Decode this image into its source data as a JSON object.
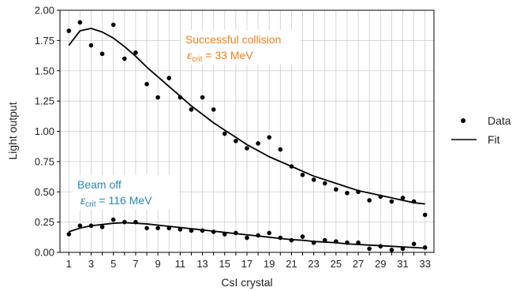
{
  "chart_data": {
    "type": "scatter",
    "title": "",
    "xlabel": "CsI crystal",
    "ylabel": "Light output",
    "xlim": [
      0.2,
      33.8
    ],
    "ylim": [
      0,
      2.0
    ],
    "x_ticks": [
      1,
      3,
      5,
      7,
      9,
      11,
      13,
      15,
      17,
      19,
      21,
      23,
      25,
      27,
      29,
      31,
      33
    ],
    "x_tick_labels": [
      "1",
      "3",
      "5",
      "7",
      "9",
      "11",
      "13",
      "15",
      "17",
      "19",
      "21",
      "23",
      "25",
      "27",
      "29",
      "31",
      "33"
    ],
    "y_ticks": [
      0,
      0.25,
      0.5,
      0.75,
      1.0,
      1.25,
      1.5,
      1.75,
      2.0
    ],
    "y_tick_labels": [
      "0.00",
      "0.25",
      "0.50",
      "0.75",
      "1.00",
      "1.25",
      "1.50",
      "1.75",
      "2.00"
    ],
    "grid": true,
    "legend": {
      "position": "outside-right",
      "data_label": "Data",
      "fit_label": "Fit"
    },
    "colors": {
      "data": "#000000",
      "fit": "#000000",
      "collision_text": "#f07f1b",
      "beam_off_text": "#2a86b5",
      "grid": "#cccccc"
    },
    "series": [
      {
        "name": "Successful collision",
        "x": [
          1,
          2,
          3,
          4,
          5,
          6,
          7,
          8,
          9,
          10,
          11,
          12,
          13,
          14,
          15,
          16,
          17,
          18,
          19,
          20,
          21,
          22,
          23,
          24,
          25,
          26,
          27,
          28,
          29,
          30,
          31,
          32,
          33
        ],
        "values": [
          1.83,
          1.9,
          1.71,
          1.64,
          1.88,
          1.6,
          1.65,
          1.39,
          1.28,
          1.44,
          1.28,
          1.18,
          1.28,
          1.18,
          0.98,
          0.92,
          0.86,
          0.9,
          0.95,
          0.85,
          0.71,
          0.64,
          0.6,
          0.57,
          0.52,
          0.49,
          0.5,
          0.43,
          0.46,
          0.42,
          0.45,
          0.42,
          0.31
        ],
        "fit": [
          1.71,
          1.83,
          1.85,
          1.82,
          1.77,
          1.7,
          1.62,
          1.53,
          1.45,
          1.37,
          1.29,
          1.21,
          1.14,
          1.07,
          1.01,
          0.95,
          0.89,
          0.84,
          0.79,
          0.75,
          0.71,
          0.67,
          0.63,
          0.6,
          0.57,
          0.54,
          0.51,
          0.49,
          0.47,
          0.45,
          0.43,
          0.41,
          0.4
        ]
      },
      {
        "name": "Beam off",
        "x": [
          1,
          2,
          3,
          4,
          5,
          6,
          7,
          8,
          9,
          10,
          11,
          12,
          13,
          14,
          15,
          16,
          17,
          18,
          19,
          20,
          21,
          22,
          23,
          24,
          25,
          26,
          27,
          28,
          29,
          30,
          31,
          32,
          33
        ],
        "values": [
          0.15,
          0.22,
          0.22,
          0.21,
          0.27,
          0.25,
          0.25,
          0.2,
          0.2,
          0.2,
          0.19,
          0.18,
          0.18,
          0.17,
          0.15,
          0.16,
          0.12,
          0.14,
          0.16,
          0.12,
          0.1,
          0.13,
          0.08,
          0.1,
          0.09,
          0.08,
          0.08,
          0.03,
          0.05,
          0.02,
          0.03,
          0.07,
          0.04
        ],
        "fit": [
          0.17,
          0.2,
          0.22,
          0.23,
          0.24,
          0.245,
          0.24,
          0.235,
          0.225,
          0.215,
          0.205,
          0.195,
          0.185,
          0.175,
          0.165,
          0.155,
          0.145,
          0.135,
          0.125,
          0.115,
          0.105,
          0.1,
          0.09,
          0.085,
          0.08,
          0.07,
          0.065,
          0.06,
          0.055,
          0.05,
          0.045,
          0.04,
          0.035
        ]
      }
    ],
    "annotations": {
      "collision_title": "Successful collision",
      "collision_eps_symbol": "ε",
      "collision_eps_sub": "crit",
      "collision_eps_value": " = 33 MeV",
      "beam_off_title": "Beam off",
      "beam_off_eps_symbol": "ε",
      "beam_off_eps_sub": "crit",
      "beam_off_eps_value": " = 116 MeV"
    }
  }
}
